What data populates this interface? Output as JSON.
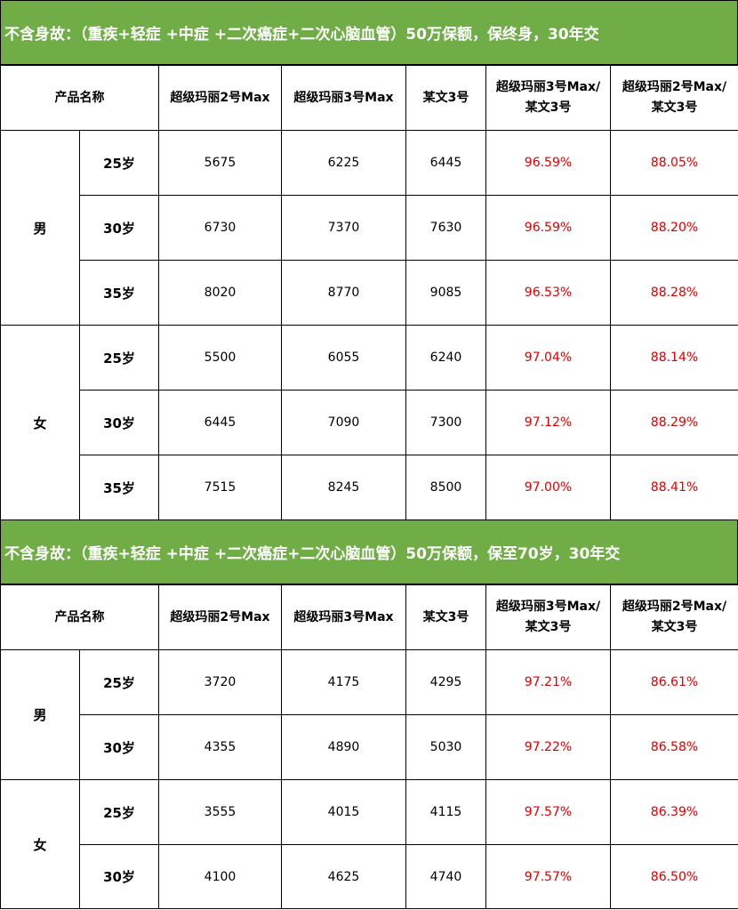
{
  "sections": [
    {
      "title": "不含身故：（重疾+轻症 +中症 +二次癌症+二次心脑血管）50万保额，保终身，30年交",
      "headers": {
        "product": "产品名称",
        "col1": "超级玛丽2号Max",
        "col2": "超级玛丽3号Max",
        "col3": "某文3号",
        "col4_line1": "超级玛丽3号Max/",
        "col4_line2": "某文3号",
        "col5_line1": "超级玛丽2号Max/",
        "col5_line2": "某文3号"
      },
      "groups": [
        {
          "gender": "男",
          "rows": [
            {
              "age": "25岁",
              "v1": "5675",
              "v2": "6225",
              "v3": "6445",
              "r1": "96.59%",
              "r2": "88.05%"
            },
            {
              "age": "30岁",
              "v1": "6730",
              "v2": "7370",
              "v3": "7630",
              "r1": "96.59%",
              "r2": "88.20%"
            },
            {
              "age": "35岁",
              "v1": "8020",
              "v2": "8770",
              "v3": "9085",
              "r1": "96.53%",
              "r2": "88.28%"
            }
          ]
        },
        {
          "gender": "女",
          "rows": [
            {
              "age": "25岁",
              "v1": "5500",
              "v2": "6055",
              "v3": "6240",
              "r1": "97.04%",
              "r2": "88.14%"
            },
            {
              "age": "30岁",
              "v1": "6445",
              "v2": "7090",
              "v3": "7300",
              "r1": "97.12%",
              "r2": "88.29%"
            },
            {
              "age": "35岁",
              "v1": "7515",
              "v2": "8245",
              "v3": "8500",
              "r1": "97.00%",
              "r2": "88.41%"
            }
          ]
        }
      ]
    },
    {
      "title": "不含身故：（重疾+轻症 +中症 +二次癌症+二次心脑血管）50万保额，保至70岁，30年交",
      "headers": {
        "product": "产品名称",
        "col1": "超级玛丽2号Max",
        "col2": "超级玛丽3号Max",
        "col3": "某文3号",
        "col4_line1": "超级玛丽3号Max/",
        "col4_line2": "某文3号",
        "col5_line1": "超级玛丽2号Max/",
        "col5_line2": "某文3号"
      },
      "groups": [
        {
          "gender": "男",
          "rows": [
            {
              "age": "25岁",
              "v1": "3720",
              "v2": "4175",
              "v3": "4295",
              "r1": "97.21%",
              "r2": "86.61%"
            },
            {
              "age": "30岁",
              "v1": "4355",
              "v2": "4890",
              "v3": "5030",
              "r1": "97.22%",
              "r2": "86.58%"
            }
          ]
        },
        {
          "gender": "女",
          "rows": [
            {
              "age": "25岁",
              "v1": "3555",
              "v2": "4015",
              "v3": "4115",
              "r1": "97.57%",
              "r2": "86.39%"
            },
            {
              "age": "30岁",
              "v1": "4100",
              "v2": "4625",
              "v3": "4740",
              "r1": "97.57%",
              "r2": "86.50%"
            }
          ]
        }
      ]
    }
  ],
  "colors": {
    "banner": "#70ad47",
    "ratio_text": "#e00000"
  }
}
